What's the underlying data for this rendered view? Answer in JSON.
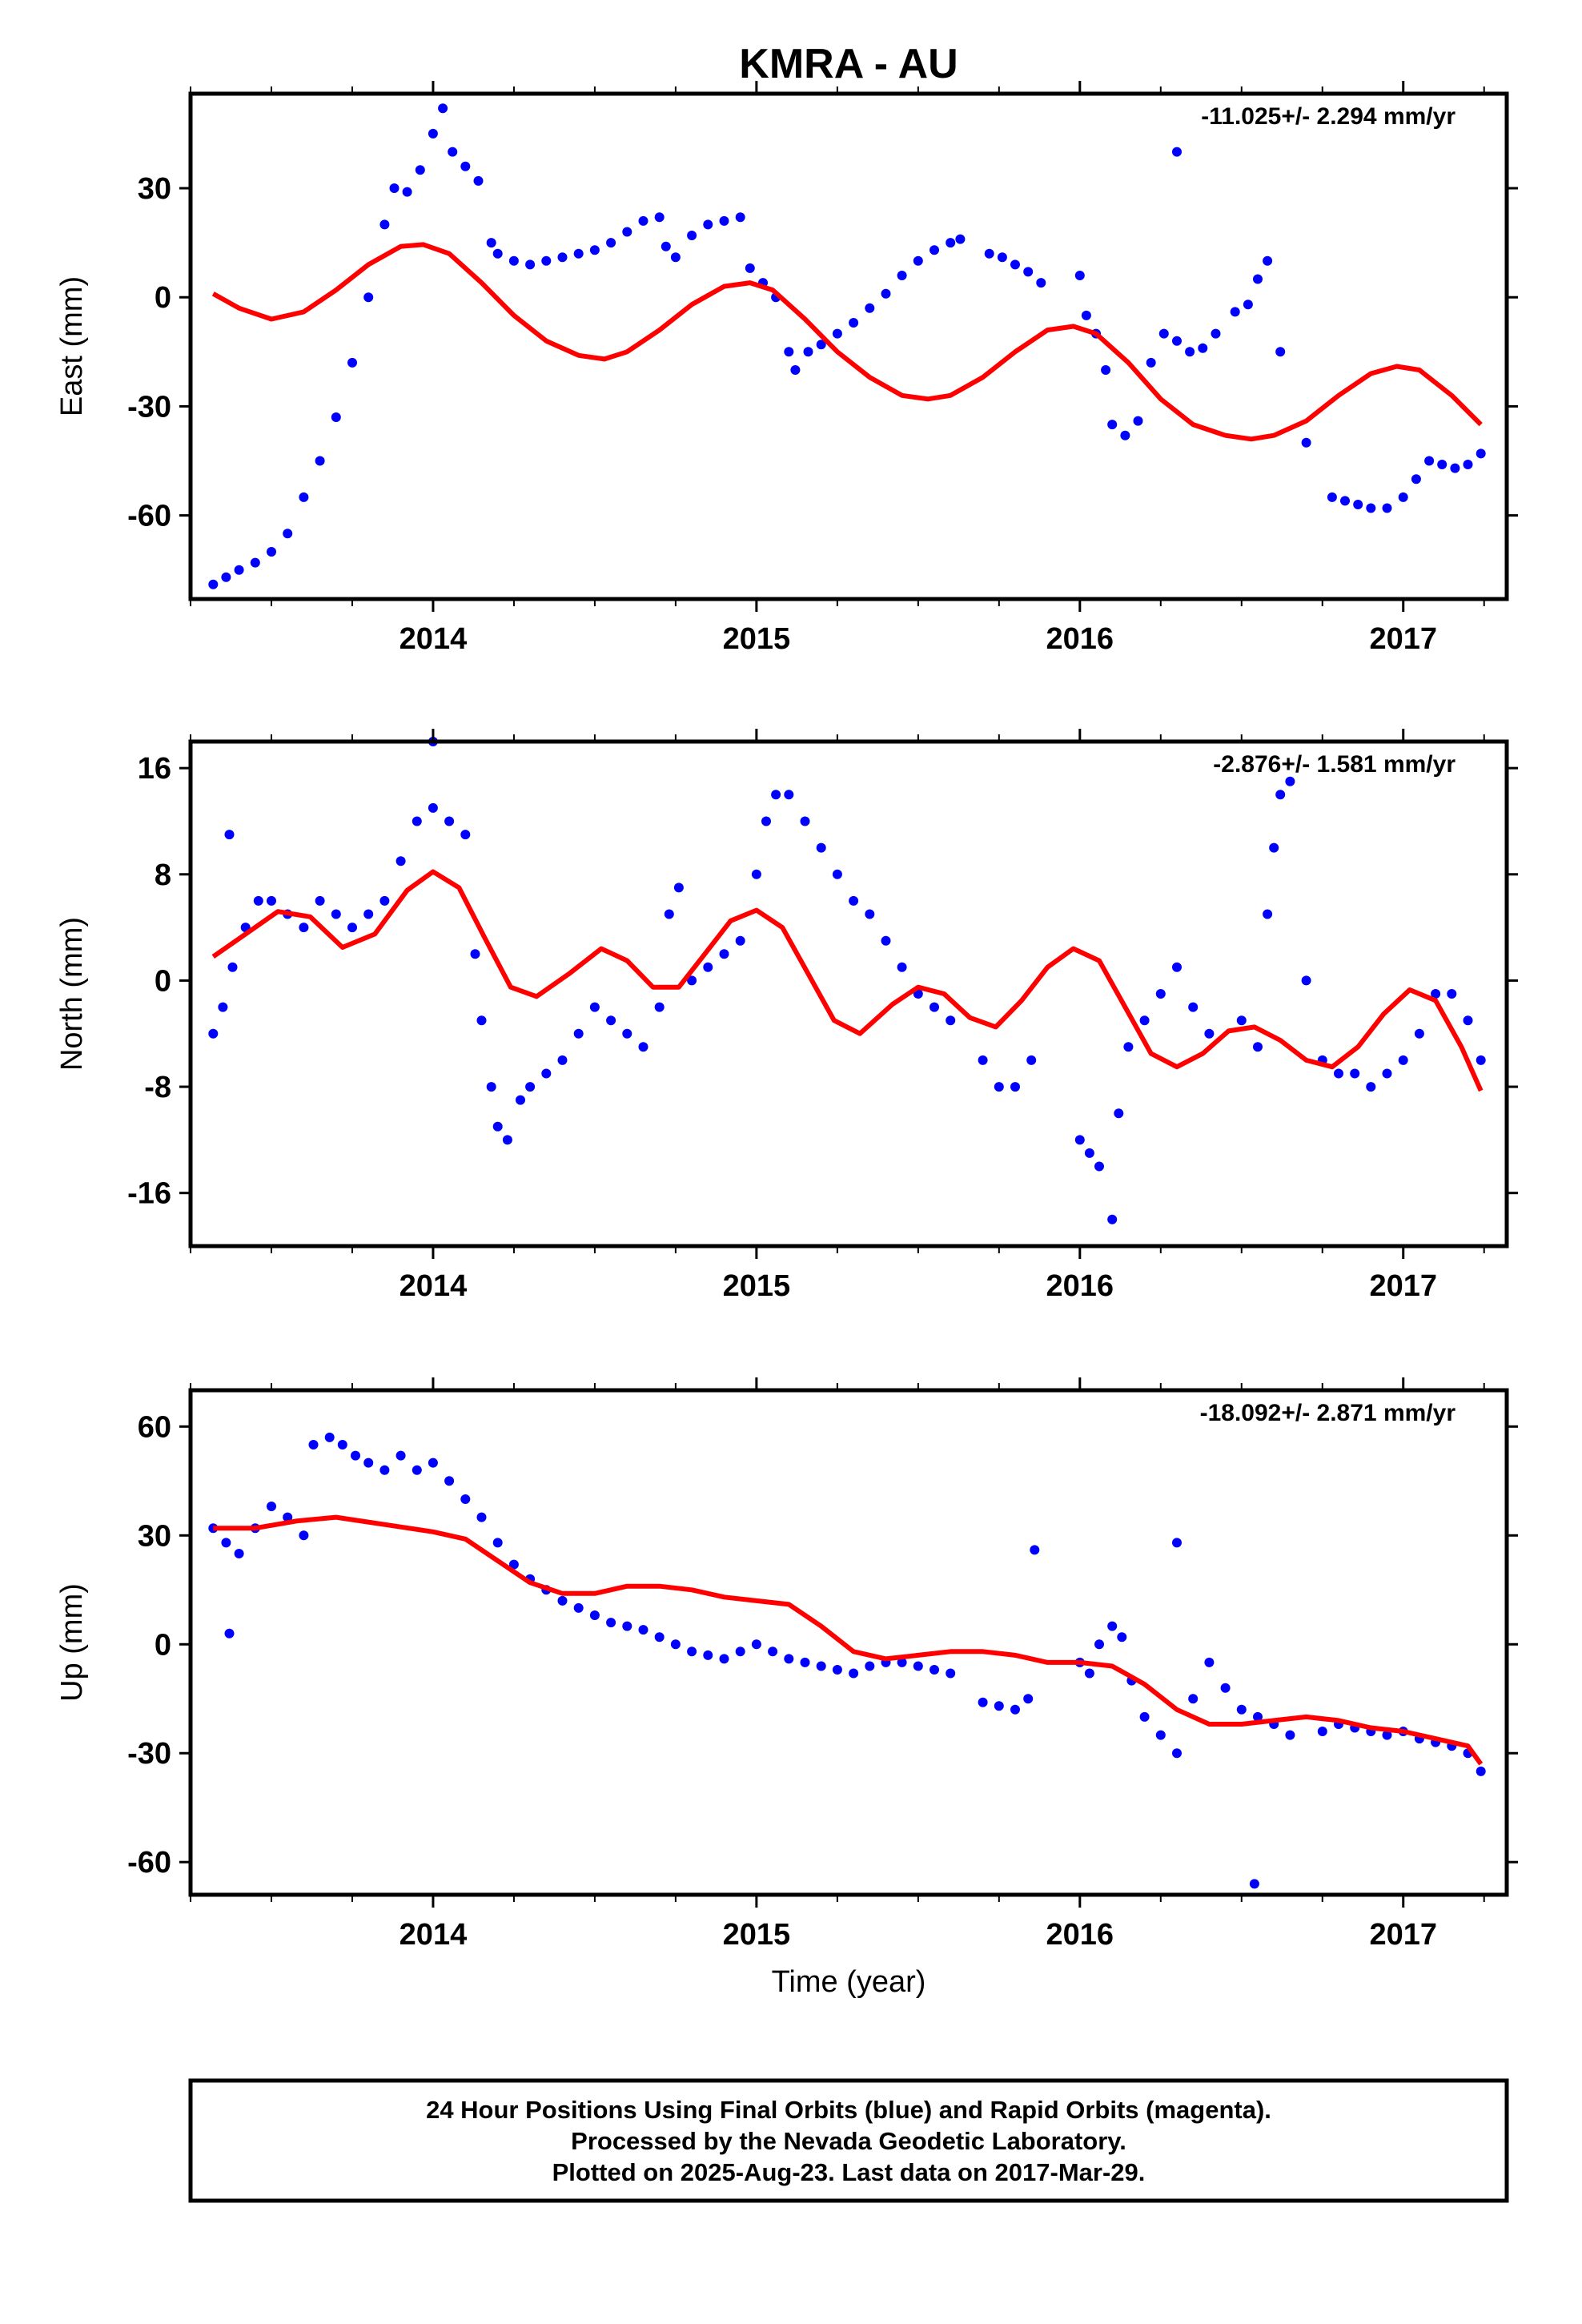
{
  "title": "KMRA - AU",
  "xlabel": "Time (year)",
  "x_ticks": [
    "2014",
    "2015",
    "2016",
    "2017"
  ],
  "footer": {
    "line1": "24 Hour Positions Using Final Orbits (blue) and Rapid Orbits (magenta).",
    "line2": "Processed by the Nevada Geodetic Laboratory.",
    "line3": "Plotted on 2025-Aug-23. Last data on 2017-Mar-29."
  },
  "colors": {
    "points": "#0000ff",
    "model": "#ff0000",
    "frame": "#000000"
  },
  "chart_data": [
    {
      "type": "scatter",
      "ylabel": "East (mm)",
      "rate_text": "-11.025+/- 2.294 mm/yr",
      "xlim": [
        2013.25,
        2017.32
      ],
      "ylim": [
        -83,
        56
      ],
      "y_ticks": [
        "30",
        "0",
        "-30",
        "-60"
      ],
      "y_tick_values": [
        30,
        0,
        -30,
        -60
      ],
      "grid": false,
      "series": [
        {
          "kind": "points",
          "x": [
            2013.32,
            2013.36,
            2013.4,
            2013.45,
            2013.5,
            2013.55,
            2013.6,
            2013.65,
            2013.7,
            2013.75,
            2013.8,
            2013.85,
            2013.88,
            2013.92,
            2013.96,
            2014.0,
            2014.03,
            2014.06,
            2014.1,
            2014.14,
            2014.18,
            2014.2,
            2014.25,
            2014.3,
            2014.35,
            2014.4,
            2014.45,
            2014.5,
            2014.55,
            2014.6,
            2014.65,
            2014.7,
            2014.72,
            2014.75,
            2014.8,
            2014.85,
            2014.9,
            2014.95,
            2014.98,
            2015.02,
            2015.06,
            2015.1,
            2015.12,
            2015.16,
            2015.2,
            2015.25,
            2015.3,
            2015.35,
            2015.4,
            2015.45,
            2015.5,
            2015.55,
            2015.6,
            2015.63,
            2015.72,
            2015.76,
            2015.8,
            2015.84,
            2015.88,
            2016.0,
            2016.02,
            2016.05,
            2016.08,
            2016.1,
            2016.14,
            2016.18,
            2016.22,
            2016.26,
            2016.3,
            2016.34,
            2016.38,
            2016.42,
            2016.48,
            2016.52,
            2016.55,
            2016.58,
            2016.62,
            2016.7,
            2016.78,
            2016.82,
            2016.86,
            2016.9,
            2016.95,
            2017.0,
            2017.04,
            2017.08,
            2017.12,
            2017.16,
            2017.2,
            2017.24,
            2016.3
          ],
          "y": [
            -79,
            -77,
            -75,
            -73,
            -70,
            -65,
            -55,
            -45,
            -33,
            -18,
            0,
            20,
            30,
            29,
            35,
            45,
            52,
            40,
            36,
            32,
            15,
            12,
            10,
            9,
            10,
            11,
            12,
            13,
            15,
            18,
            21,
            22,
            14,
            11,
            17,
            20,
            21,
            22,
            8,
            4,
            0,
            -15,
            -20,
            -15,
            -13,
            -10,
            -7,
            -3,
            1,
            6,
            10,
            13,
            15,
            16,
            12,
            11,
            9,
            7,
            4,
            6,
            -5,
            -10,
            -20,
            -35,
            -38,
            -34,
            -18,
            -10,
            -12,
            -15,
            -14,
            -10,
            -4,
            -2,
            5,
            10,
            -15,
            -40,
            -55,
            -56,
            -57,
            -58,
            -58,
            -55,
            -50,
            -45,
            -46,
            -47,
            -46,
            -43,
            40
          ]
        },
        {
          "kind": "model",
          "x": [
            2013.32,
            2013.4,
            2013.5,
            2013.6,
            2013.7,
            2013.8,
            2013.9,
            2013.97,
            2014.05,
            2014.15,
            2014.25,
            2014.35,
            2014.45,
            2014.53,
            2014.6,
            2014.7,
            2014.8,
            2014.9,
            2014.98,
            2015.05,
            2015.15,
            2015.25,
            2015.35,
            2015.45,
            2015.53,
            2015.6,
            2015.7,
            2015.8,
            2015.9,
            2015.98,
            2016.05,
            2016.15,
            2016.25,
            2016.35,
            2016.45,
            2016.53,
            2016.6,
            2016.7,
            2016.8,
            2016.9,
            2016.98,
            2017.05,
            2017.15,
            2017.24
          ],
          "y": [
            1,
            -3,
            -6,
            -4,
            2,
            9,
            14,
            14.5,
            12,
            4,
            -5,
            -12,
            -16,
            -17,
            -15,
            -9,
            -2,
            3,
            4,
            2,
            -6,
            -15,
            -22,
            -27,
            -28,
            -27,
            -22,
            -15,
            -9,
            -8,
            -10,
            -18,
            -28,
            -35,
            -38,
            -39,
            -38,
            -34,
            -27,
            -21,
            -19,
            -20,
            -27,
            -35
          ]
        }
      ]
    },
    {
      "type": "scatter",
      "ylabel": "North (mm)",
      "rate_text": "-2.876+/- 1.581 mm/yr",
      "xlim": [
        2013.25,
        2017.32
      ],
      "ylim": [
        -20,
        18
      ],
      "y_ticks": [
        "16",
        "8",
        "0",
        "-8",
        "-16"
      ],
      "y_tick_values": [
        16,
        8,
        0,
        -8,
        -16
      ],
      "grid": false,
      "series": [
        {
          "kind": "points",
          "x": [
            2013.32,
            2013.35,
            2013.38,
            2013.42,
            2013.46,
            2013.5,
            2013.55,
            2013.6,
            2013.65,
            2013.7,
            2013.75,
            2013.8,
            2013.85,
            2013.9,
            2013.95,
            2014.0,
            2014.05,
            2014.1,
            2014.13,
            2014.15,
            2014.18,
            2014.2,
            2014.23,
            2014.27,
            2014.3,
            2014.35,
            2014.4,
            2014.45,
            2014.5,
            2014.55,
            2014.6,
            2014.65,
            2014.7,
            2014.73,
            2014.76,
            2014.8,
            2014.85,
            2014.9,
            2014.95,
            2015.0,
            2015.03,
            2015.06,
            2015.1,
            2015.15,
            2015.2,
            2015.25,
            2015.3,
            2015.35,
            2015.4,
            2015.45,
            2015.5,
            2015.55,
            2015.6,
            2015.7,
            2015.75,
            2015.8,
            2015.85,
            2016.0,
            2016.03,
            2016.06,
            2016.1,
            2016.12,
            2016.15,
            2016.2,
            2016.25,
            2016.3,
            2016.35,
            2016.4,
            2016.5,
            2016.55,
            2016.58,
            2016.6,
            2016.62,
            2016.65,
            2016.7,
            2016.75,
            2016.8,
            2016.85,
            2016.9,
            2016.95,
            2017.0,
            2017.05,
            2017.1,
            2017.15,
            2017.2,
            2017.24,
            2014.0,
            2013.37
          ],
          "y": [
            -4,
            -2,
            1,
            4,
            6,
            6,
            5,
            4,
            6,
            5,
            4,
            5,
            6,
            9,
            12,
            13,
            12,
            11,
            2,
            -3,
            -8,
            -11,
            -12,
            -9,
            -8,
            -7,
            -6,
            -4,
            -2,
            -3,
            -4,
            -5,
            -2,
            5,
            7,
            0,
            1,
            2,
            3,
            8,
            12,
            14,
            14,
            12,
            10,
            8,
            6,
            5,
            3,
            1,
            -1,
            -2,
            -3,
            -6,
            -8,
            -8,
            -6,
            -12,
            -13,
            -14,
            -18,
            -10,
            -5,
            -3,
            -1,
            1,
            -2,
            -4,
            -3,
            -5,
            5,
            10,
            14,
            15,
            0,
            -6,
            -7,
            -7,
            -8,
            -7,
            -6,
            -4,
            -1,
            -1,
            -3,
            -6,
            18,
            11
          ]
        },
        {
          "kind": "model",
          "x": [
            2013.32,
            2013.42,
            2013.52,
            2013.62,
            2013.72,
            2013.82,
            2013.92,
            2014.0,
            2014.08,
            2014.16,
            2014.24,
            2014.32,
            2014.42,
            2014.52,
            2014.6,
            2014.68,
            2014.76,
            2014.84,
            2014.92,
            2015.0,
            2015.08,
            2015.16,
            2015.24,
            2015.32,
            2015.42,
            2015.5,
            2015.58,
            2015.66,
            2015.74,
            2015.82,
            2015.9,
            2015.98,
            2016.06,
            2016.14,
            2016.22,
            2016.3,
            2016.38,
            2016.46,
            2016.54,
            2016.62,
            2016.7,
            2016.78,
            2016.86,
            2016.94,
            2017.02,
            2017.1,
            2017.18,
            2017.24
          ],
          "y": [
            1.8,
            3.5,
            5.2,
            4.8,
            2.5,
            3.5,
            6.8,
            8.2,
            7.0,
            3.2,
            -0.5,
            -1.2,
            0.5,
            2.4,
            1.5,
            -0.5,
            -0.5,
            2.0,
            4.5,
            5.3,
            4.0,
            0.5,
            -3.0,
            -4.0,
            -1.8,
            -0.5,
            -1.0,
            -2.8,
            -3.5,
            -1.5,
            1.0,
            2.4,
            1.5,
            -2.0,
            -5.5,
            -6.5,
            -5.5,
            -3.8,
            -3.5,
            -4.5,
            -6.0,
            -6.5,
            -5.0,
            -2.5,
            -0.7,
            -1.5,
            -5.0,
            -8.3
          ]
        }
      ]
    },
    {
      "type": "scatter",
      "ylabel": "Up (mm)",
      "rate_text": "-18.092+/- 2.871 mm/yr",
      "xlim": [
        2013.25,
        2017.32
      ],
      "ylim": [
        -69,
        70
      ],
      "y_ticks": [
        "60",
        "30",
        "0",
        "-30",
        "-60"
      ],
      "y_tick_values": [
        60,
        30,
        0,
        -30,
        -60
      ],
      "grid": false,
      "series": [
        {
          "kind": "points",
          "x": [
            2013.32,
            2013.36,
            2013.4,
            2013.45,
            2013.5,
            2013.55,
            2013.6,
            2013.63,
            2013.68,
            2013.72,
            2013.76,
            2013.8,
            2013.85,
            2013.9,
            2013.95,
            2014.0,
            2014.05,
            2014.1,
            2014.15,
            2014.2,
            2014.25,
            2014.3,
            2014.35,
            2014.4,
            2014.45,
            2014.5,
            2014.55,
            2014.6,
            2014.65,
            2014.7,
            2014.75,
            2014.8,
            2014.85,
            2014.9,
            2014.95,
            2015.0,
            2015.05,
            2015.1,
            2015.15,
            2015.2,
            2015.25,
            2015.3,
            2015.35,
            2015.4,
            2015.45,
            2015.5,
            2015.55,
            2015.6,
            2015.7,
            2015.75,
            2015.8,
            2015.84,
            2016.0,
            2016.03,
            2016.06,
            2016.1,
            2016.13,
            2016.16,
            2016.2,
            2016.25,
            2016.3,
            2016.35,
            2016.4,
            2016.45,
            2016.5,
            2016.55,
            2016.6,
            2016.65,
            2016.75,
            2016.8,
            2016.85,
            2016.9,
            2016.95,
            2017.0,
            2017.05,
            2017.1,
            2017.15,
            2017.2,
            2017.24,
            2015.86,
            2016.3,
            2016.54,
            2013.37
          ],
          "y": [
            32,
            28,
            25,
            32,
            38,
            35,
            30,
            55,
            57,
            55,
            52,
            50,
            48,
            52,
            48,
            50,
            45,
            40,
            35,
            28,
            22,
            18,
            15,
            12,
            10,
            8,
            6,
            5,
            4,
            2,
            0,
            -2,
            -3,
            -4,
            -2,
            0,
            -2,
            -4,
            -5,
            -6,
            -7,
            -8,
            -6,
            -5,
            -5,
            -6,
            -7,
            -8,
            -16,
            -17,
            -18,
            -15,
            -5,
            -8,
            0,
            5,
            2,
            -10,
            -20,
            -25,
            -30,
            -15,
            -5,
            -12,
            -18,
            -20,
            -22,
            -25,
            -24,
            -22,
            -23,
            -24,
            -25,
            -24,
            -26,
            -27,
            -28,
            -30,
            -35,
            26,
            28,
            -66,
            3
          ]
        },
        {
          "kind": "model",
          "x": [
            2013.32,
            2013.45,
            2013.58,
            2013.7,
            2013.85,
            2014.0,
            2014.1,
            2014.2,
            2014.3,
            2014.4,
            2014.5,
            2014.6,
            2014.7,
            2014.8,
            2014.9,
            2015.0,
            2015.1,
            2015.2,
            2015.3,
            2015.4,
            2015.5,
            2015.6,
            2015.7,
            2015.8,
            2015.9,
            2016.0,
            2016.1,
            2016.2,
            2016.3,
            2016.4,
            2016.5,
            2016.6,
            2016.7,
            2016.8,
            2016.9,
            2017.0,
            2017.1,
            2017.2,
            2017.24
          ],
          "y": [
            32,
            32,
            34,
            35,
            33,
            31,
            29,
            23,
            17,
            14,
            14,
            16,
            16,
            15,
            13,
            12,
            11,
            5,
            -2,
            -4,
            -3,
            -2,
            -2,
            -3,
            -5,
            -5,
            -6,
            -11,
            -18,
            -22,
            -22,
            -21,
            -20,
            -21,
            -23,
            -24,
            -26,
            -28,
            -33
          ]
        }
      ]
    }
  ]
}
